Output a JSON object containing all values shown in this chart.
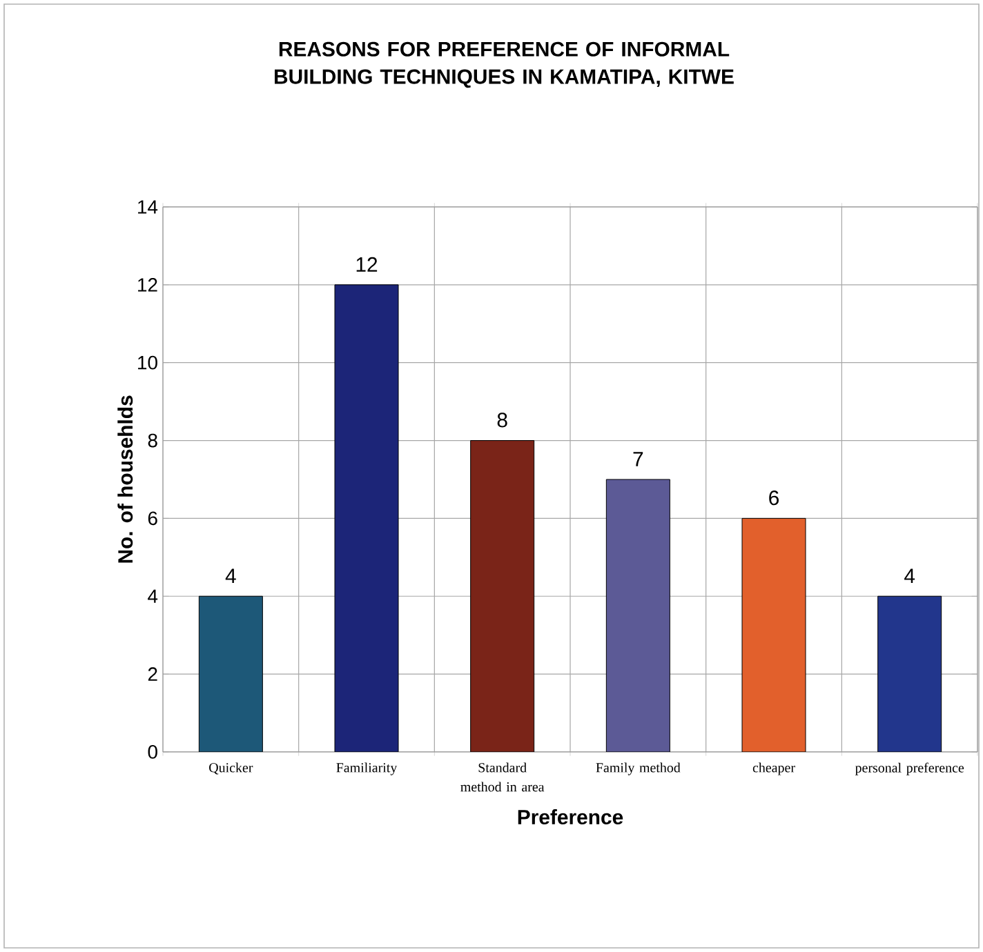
{
  "chart_data": {
    "type": "bar",
    "title": "REASONS FOR PREFERENCE OF INFORMAL BUILDING TECHNIQUES IN KAMATIPA, KITWE",
    "xlabel": "Preference",
    "ylabel": "No. of househlds",
    "categories": [
      "Quicker",
      "Familiarity",
      "Standard method in area",
      "Family method",
      "cheaper",
      "personal preference"
    ],
    "values": [
      4,
      12,
      8,
      7,
      6,
      4
    ],
    "colors": [
      "#1d5878",
      "#1c2578",
      "#7a2418",
      "#5c5a96",
      "#e2602c",
      "#22368c"
    ],
    "ylim": [
      0,
      14
    ],
    "yticks": [
      0,
      2,
      4,
      6,
      8,
      10,
      12,
      14
    ],
    "grid": true,
    "data_labels": true
  }
}
